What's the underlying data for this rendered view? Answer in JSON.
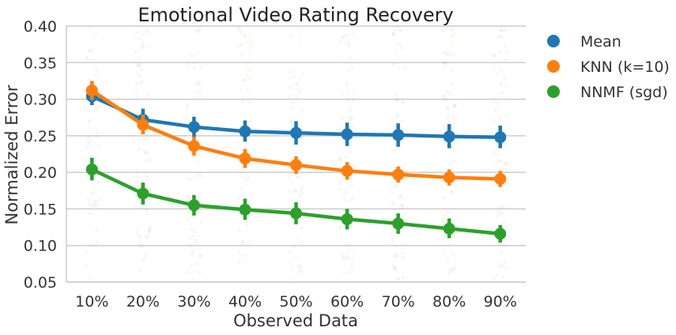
{
  "chart_data": {
    "type": "line",
    "title": "Emotional Video Rating Recovery",
    "xlabel": "Observed Data",
    "ylabel": "Normalized Error",
    "categories": [
      "10%",
      "20%",
      "30%",
      "40%",
      "50%",
      "60%",
      "70%",
      "80%",
      "90%"
    ],
    "ylim": [
      0.05,
      0.4
    ],
    "yticks": [
      "0.05",
      "0.10",
      "0.15",
      "0.20",
      "0.25",
      "0.30",
      "0.35",
      "0.40"
    ],
    "grid": "horizontal",
    "legend_position": "right",
    "series": [
      {
        "name": "Mean",
        "color": "#1f77b4",
        "values": [
          0.304,
          0.272,
          0.262,
          0.256,
          0.254,
          0.252,
          0.251,
          0.249,
          0.248
        ],
        "ci_low": [
          0.292,
          0.257,
          0.248,
          0.242,
          0.238,
          0.236,
          0.235,
          0.233,
          0.233
        ],
        "ci_high": [
          0.316,
          0.287,
          0.276,
          0.271,
          0.27,
          0.268,
          0.267,
          0.266,
          0.264
        ]
      },
      {
        "name": "KNN (k=10)",
        "color": "#ff7f0e",
        "values": [
          0.312,
          0.265,
          0.236,
          0.219,
          0.21,
          0.202,
          0.197,
          0.193,
          0.191
        ],
        "ci_low": [
          0.299,
          0.252,
          0.223,
          0.206,
          0.198,
          0.19,
          0.186,
          0.182,
          0.18
        ],
        "ci_high": [
          0.325,
          0.279,
          0.249,
          0.232,
          0.222,
          0.214,
          0.208,
          0.204,
          0.202
        ]
      },
      {
        "name": "NNMF (sgd)",
        "color": "#2ca02c",
        "values": [
          0.204,
          0.171,
          0.155,
          0.149,
          0.144,
          0.136,
          0.13,
          0.123,
          0.116
        ],
        "ci_low": [
          0.189,
          0.156,
          0.141,
          0.135,
          0.129,
          0.122,
          0.116,
          0.11,
          0.104
        ],
        "ci_high": [
          0.22,
          0.186,
          0.169,
          0.164,
          0.159,
          0.15,
          0.144,
          0.137,
          0.128
        ]
      }
    ]
  }
}
